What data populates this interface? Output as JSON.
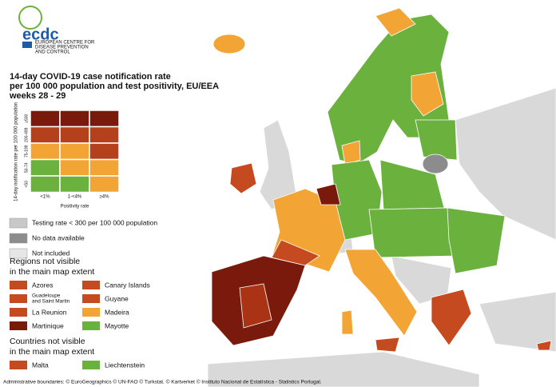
{
  "logo": {
    "name": "ecdc",
    "subtitle": [
      "EUROPEAN CENTRE FOR",
      "DISEASE PREVENTION",
      "AND CONTROL"
    ]
  },
  "title": [
    "14-day COVID-19 case notification rate",
    "per 100 000 population and test positivity, EU/EEA",
    "weeks 28 - 29"
  ],
  "matrix": {
    "y_label": "14-day notification rate per 100 000 population",
    "rows": [
      "≥500",
      "200-499",
      "75-199",
      "50-74",
      "<50"
    ],
    "columns": [
      "<1%",
      "1-<4%",
      "≥4%"
    ],
    "x_label": "Positivity rate"
  },
  "legend": {
    "items": [
      "Testing rate < 300 per 100 000 population",
      "No data available",
      "Not included"
    ],
    "regions": {
      "heading": [
        "Regions not visible",
        "in the main map extent"
      ],
      "items": [
        [
          "Azores"
        ],
        [
          "Guadeloupe",
          "and Saint Martin"
        ],
        [
          "La Reunion"
        ],
        [
          "Martinique"
        ],
        [
          "Canary Islands"
        ],
        [
          "Guyane"
        ],
        [
          "Madeira"
        ],
        [
          "Mayotte"
        ]
      ]
    },
    "countries": {
      "heading": [
        "Countries not visible",
        "in the main map extent"
      ],
      "items": [
        [
          "Malta"
        ],
        [
          "Liechtenstein"
        ]
      ]
    }
  },
  "footer": "Administrative boundaries: © EuroGeographics © UN-FAO © Turkstat. © Kartverket © Instituto Nacional de Estatística - Statistics Portugal."
}
